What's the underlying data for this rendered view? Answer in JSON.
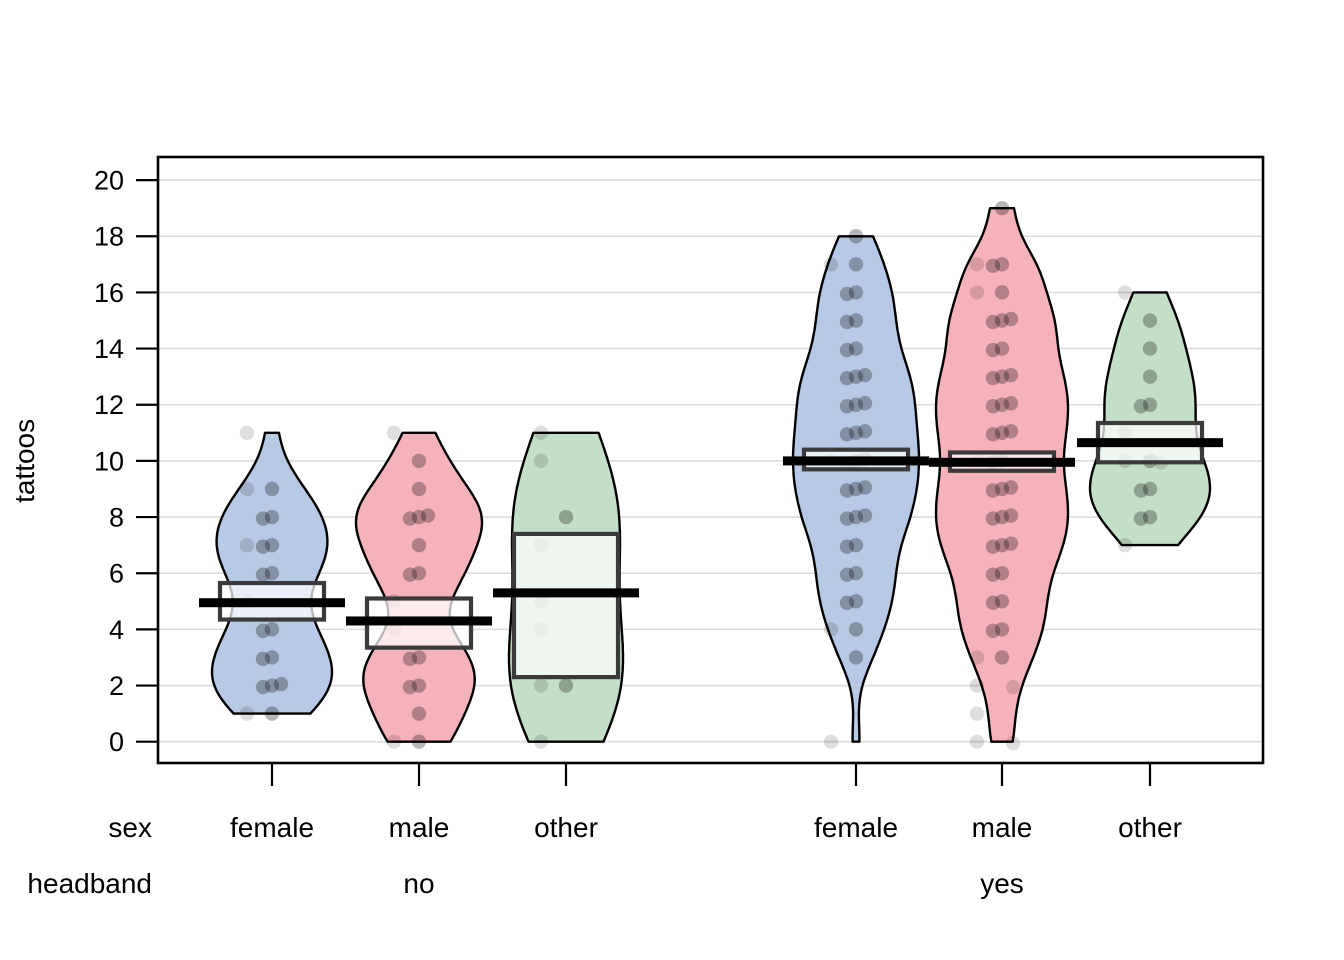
{
  "figure_title": "",
  "chart_data": {
    "type": "violin",
    "style": "pirateplot",
    "title": "",
    "ylabel": "tattoos",
    "ylim": [
      0,
      20
    ],
    "yticks": [
      0,
      2,
      4,
      6,
      8,
      10,
      12,
      14,
      16,
      18,
      20
    ],
    "grid": true,
    "legend": "none",
    "axis_row_labels": {
      "sex": "sex",
      "headband": "headband"
    },
    "headband_levels": [
      {
        "label": "no"
      },
      {
        "label": "yes"
      }
    ],
    "colors": {
      "female_fill": "#b7c9e4",
      "male_fill": "#f6b2bb",
      "other_fill": "#c4dfc7",
      "violin_outline": "#000000",
      "box_stroke": "#3a3a3a",
      "box_fill_alpha": 0.72,
      "mean_line": "#000000",
      "grid_line": "#dcdcdc",
      "point_color": "#000000"
    },
    "points_format": "[value, dark_point_count, light_point_count]",
    "groups": [
      {
        "sex": "female",
        "headband": "no",
        "mean": 4.95,
        "inference_band": [
          4.35,
          5.65
        ],
        "range": [
          1,
          11
        ],
        "bw": 1.05,
        "points": [
          [
            11,
            0,
            1
          ],
          [
            9,
            1,
            1
          ],
          [
            8,
            2,
            0
          ],
          [
            7,
            2,
            1
          ],
          [
            6,
            2,
            0
          ],
          [
            5,
            0,
            1
          ],
          [
            4,
            2,
            0
          ],
          [
            3,
            2,
            0
          ],
          [
            2,
            3,
            0
          ],
          [
            1,
            1,
            1
          ]
        ]
      },
      {
        "sex": "male",
        "headband": "no",
        "mean": 4.3,
        "inference_band": [
          3.35,
          5.1
        ],
        "range": [
          0,
          11
        ],
        "bw": 1.05,
        "points": [
          [
            11,
            0,
            1
          ],
          [
            10,
            1,
            0
          ],
          [
            9,
            1,
            0
          ],
          [
            8,
            3,
            0
          ],
          [
            7,
            1,
            0
          ],
          [
            6,
            2,
            0
          ],
          [
            5,
            0,
            1
          ],
          [
            4,
            0,
            1
          ],
          [
            3,
            2,
            0
          ],
          [
            2,
            2,
            0
          ],
          [
            1,
            1,
            0
          ],
          [
            0,
            1,
            1
          ]
        ]
      },
      {
        "sex": "other",
        "headband": "no",
        "mean": 5.3,
        "inference_band": [
          2.3,
          7.4
        ],
        "range": [
          0,
          11
        ],
        "bw": 2.3,
        "points": [
          [
            11,
            0,
            1
          ],
          [
            10,
            0,
            1
          ],
          [
            8,
            1,
            0
          ],
          [
            7,
            0,
            1
          ],
          [
            5,
            0,
            1
          ],
          [
            4,
            0,
            1
          ],
          [
            2,
            1,
            1
          ],
          [
            0,
            0,
            1
          ]
        ]
      },
      {
        "sex": "female",
        "headband": "yes",
        "mean": 10.0,
        "inference_band": [
          9.7,
          10.4
        ],
        "range": [
          0,
          18
        ],
        "bw": 0.95,
        "points": [
          [
            18,
            1,
            0
          ],
          [
            17,
            1,
            1
          ],
          [
            16,
            2,
            0
          ],
          [
            15,
            2,
            0
          ],
          [
            14,
            2,
            0
          ],
          [
            13,
            3,
            0
          ],
          [
            12,
            3,
            0
          ],
          [
            11,
            3,
            0
          ],
          [
            10,
            3,
            1
          ],
          [
            9,
            3,
            0
          ],
          [
            8,
            3,
            0
          ],
          [
            7,
            2,
            0
          ],
          [
            6,
            2,
            0
          ],
          [
            5,
            2,
            0
          ],
          [
            4,
            1,
            1
          ],
          [
            3,
            1,
            0
          ],
          [
            0,
            0,
            1
          ]
        ]
      },
      {
        "sex": "male",
        "headband": "yes",
        "mean": 9.95,
        "inference_band": [
          9.65,
          10.3
        ],
        "range": [
          0,
          19
        ],
        "bw": 0.95,
        "points": [
          [
            19,
            1,
            0
          ],
          [
            17,
            2,
            1
          ],
          [
            16,
            1,
            1
          ],
          [
            15,
            3,
            0
          ],
          [
            14,
            2,
            0
          ],
          [
            13,
            3,
            0
          ],
          [
            12,
            3,
            0
          ],
          [
            11,
            3,
            0
          ],
          [
            10,
            2,
            1
          ],
          [
            9,
            3,
            0
          ],
          [
            8,
            3,
            0
          ],
          [
            7,
            3,
            0
          ],
          [
            6,
            2,
            0
          ],
          [
            5,
            2,
            0
          ],
          [
            4,
            2,
            0
          ],
          [
            3,
            1,
            1
          ],
          [
            2,
            0,
            2
          ],
          [
            1,
            0,
            1
          ],
          [
            0,
            0,
            2
          ]
        ]
      },
      {
        "sex": "other",
        "headband": "yes",
        "mean": 10.65,
        "inference_band": [
          9.95,
          11.35
        ],
        "range": [
          7,
          16
        ],
        "bw": 1.15,
        "points": [
          [
            16,
            0,
            1
          ],
          [
            15,
            1,
            0
          ],
          [
            14,
            1,
            0
          ],
          [
            13,
            1,
            0
          ],
          [
            12,
            2,
            0
          ],
          [
            11,
            0,
            1
          ],
          [
            10,
            1,
            2
          ],
          [
            9,
            2,
            0
          ],
          [
            8,
            2,
            0
          ],
          [
            7,
            0,
            1
          ]
        ]
      }
    ]
  }
}
